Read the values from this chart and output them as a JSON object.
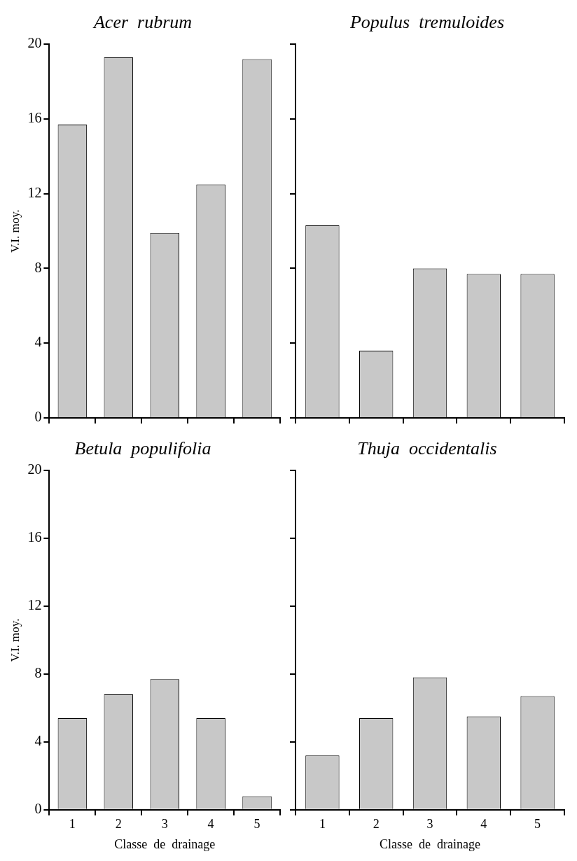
{
  "chart_data": [
    {
      "type": "bar",
      "title": "Acer  rubrum",
      "ylabel": "V.I. moy.",
      "categories": [
        "1",
        "2",
        "3",
        "4",
        "5"
      ],
      "values": [
        15.7,
        19.3,
        9.9,
        12.5,
        19.2
      ],
      "color": "#c8c8c8",
      "ylim": [
        0,
        20
      ],
      "yticks": [
        0,
        4,
        8,
        12,
        16,
        20
      ],
      "tick_labels": "y"
    },
    {
      "type": "bar",
      "title": "Populus  tremuloides",
      "categories": [
        "1",
        "2",
        "3",
        "4",
        "5"
      ],
      "values": [
        10.3,
        3.6,
        8.0,
        7.7,
        7.7
      ],
      "color": "#c8c8c8",
      "ylim": [
        0,
        20
      ],
      "yticks": [
        0,
        4,
        8,
        12,
        16,
        20
      ],
      "tick_labels": false
    },
    {
      "type": "bar",
      "title": "Betula  populifolia",
      "ylabel": "V.I. moy.",
      "xlabel": "Classe  de  drainage",
      "categories": [
        "1",
        "2",
        "3",
        "4",
        "5"
      ],
      "values": [
        5.4,
        6.8,
        7.7,
        5.4,
        0.8
      ],
      "color": "#c8c8c8",
      "ylim": [
        0,
        20
      ],
      "yticks": [
        0,
        4,
        8,
        12,
        16,
        20
      ]
    },
    {
      "type": "bar",
      "title": "Thuja  occidentalis",
      "xlabel": "Classe  de  drainage",
      "categories": [
        "1",
        "2",
        "3",
        "4",
        "5"
      ],
      "values": [
        3.2,
        5.4,
        7.8,
        5.5,
        6.7
      ],
      "color": "#c8c8c8",
      "ylim": [
        0,
        20
      ],
      "yticks": [
        0,
        4,
        8,
        12,
        16,
        20
      ],
      "tick_labels": "x"
    }
  ]
}
